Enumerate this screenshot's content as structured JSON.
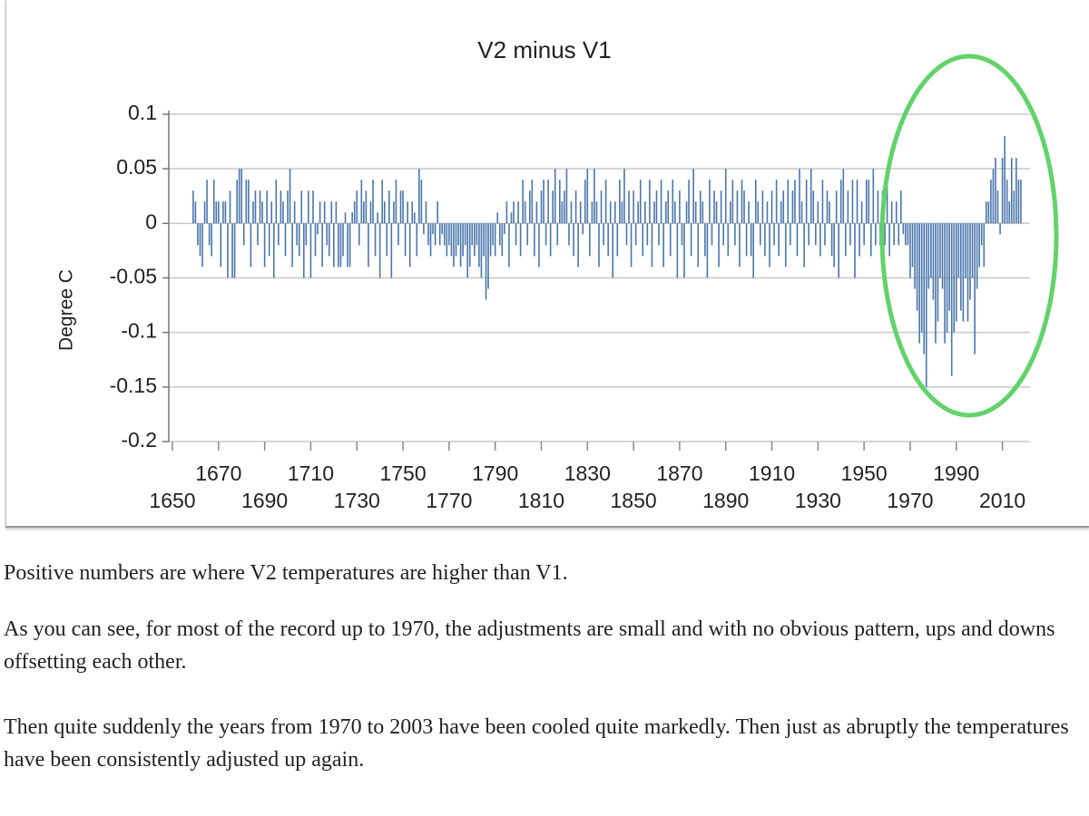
{
  "chart_data": {
    "type": "bar",
    "title": "V2 minus V1",
    "y_label": "Degree C",
    "x": [
      1659,
      1660,
      1661,
      1662,
      1663,
      1664,
      1665,
      1666,
      1667,
      1668,
      1669,
      1670,
      1671,
      1672,
      1673,
      1674,
      1675,
      1676,
      1677,
      1678,
      1679,
      1680,
      1681,
      1682,
      1683,
      1684,
      1685,
      1686,
      1687,
      1688,
      1689,
      1690,
      1691,
      1692,
      1693,
      1694,
      1695,
      1696,
      1697,
      1698,
      1699,
      1700,
      1701,
      1702,
      1703,
      1704,
      1705,
      1706,
      1707,
      1708,
      1709,
      1710,
      1711,
      1712,
      1713,
      1714,
      1715,
      1716,
      1717,
      1718,
      1719,
      1720,
      1721,
      1722,
      1723,
      1724,
      1725,
      1726,
      1727,
      1728,
      1729,
      1730,
      1731,
      1732,
      1733,
      1734,
      1735,
      1736,
      1737,
      1738,
      1739,
      1740,
      1741,
      1742,
      1743,
      1744,
      1745,
      1746,
      1747,
      1748,
      1749,
      1750,
      1751,
      1752,
      1753,
      1754,
      1755,
      1756,
      1757,
      1758,
      1759,
      1760,
      1761,
      1762,
      1763,
      1764,
      1765,
      1766,
      1767,
      1768,
      1769,
      1770,
      1771,
      1772,
      1773,
      1774,
      1775,
      1776,
      1777,
      1778,
      1779,
      1780,
      1781,
      1782,
      1783,
      1784,
      1785,
      1786,
      1787,
      1788,
      1789,
      1790,
      1791,
      1792,
      1793,
      1794,
      1795,
      1796,
      1797,
      1798,
      1799,
      1800,
      1801,
      1802,
      1803,
      1804,
      1805,
      1806,
      1807,
      1808,
      1809,
      1810,
      1811,
      1812,
      1813,
      1814,
      1815,
      1816,
      1817,
      1818,
      1819,
      1820,
      1821,
      1822,
      1823,
      1824,
      1825,
      1826,
      1827,
      1828,
      1829,
      1830,
      1831,
      1832,
      1833,
      1834,
      1835,
      1836,
      1837,
      1838,
      1839,
      1840,
      1841,
      1842,
      1843,
      1844,
      1845,
      1846,
      1847,
      1848,
      1849,
      1850,
      1851,
      1852,
      1853,
      1854,
      1855,
      1856,
      1857,
      1858,
      1859,
      1860,
      1861,
      1862,
      1863,
      1864,
      1865,
      1866,
      1867,
      1868,
      1869,
      1870,
      1871,
      1872,
      1873,
      1874,
      1875,
      1876,
      1877,
      1878,
      1879,
      1880,
      1881,
      1882,
      1883,
      1884,
      1885,
      1886,
      1887,
      1888,
      1889,
      1890,
      1891,
      1892,
      1893,
      1894,
      1895,
      1896,
      1897,
      1898,
      1899,
      1900,
      1901,
      1902,
      1903,
      1904,
      1905,
      1906,
      1907,
      1908,
      1909,
      1910,
      1911,
      1912,
      1913,
      1914,
      1915,
      1916,
      1917,
      1918,
      1919,
      1920,
      1921,
      1922,
      1923,
      1924,
      1925,
      1926,
      1927,
      1928,
      1929,
      1930,
      1931,
      1932,
      1933,
      1934,
      1935,
      1936,
      1937,
      1938,
      1939,
      1940,
      1941,
      1942,
      1943,
      1944,
      1945,
      1946,
      1947,
      1948,
      1949,
      1950,
      1951,
      1952,
      1953,
      1954,
      1955,
      1956,
      1957,
      1958,
      1959,
      1960,
      1961,
      1962,
      1963,
      1964,
      1965,
      1966,
      1967,
      1968,
      1969,
      1970,
      1971,
      1972,
      1973,
      1974,
      1975,
      1976,
      1977,
      1978,
      1979,
      1980,
      1981,
      1982,
      1983,
      1984,
      1985,
      1986,
      1987,
      1988,
      1989,
      1990,
      1991,
      1992,
      1993,
      1994,
      1995,
      1996,
      1997,
      1998,
      1999,
      2000,
      2001,
      2002,
      2003,
      2004,
      2005,
      2006,
      2007,
      2008,
      2009,
      2010,
      2011,
      2012,
      2013,
      2014,
      2015,
      2016,
      2017,
      2018
    ],
    "values": [
      0.03,
      0.02,
      -0.02,
      -0.03,
      -0.04,
      0.02,
      0.04,
      -0.02,
      -0.03,
      0.04,
      0.02,
      0.02,
      -0.04,
      0.02,
      0.02,
      -0.05,
      0.03,
      -0.05,
      -0.05,
      0.04,
      0.05,
      0.05,
      -0.02,
      0.04,
      0.04,
      -0.04,
      0.02,
      0.03,
      -0.02,
      0.03,
      0.02,
      -0.04,
      0.03,
      -0.03,
      0.02,
      -0.05,
      0.04,
      -0.02,
      0.03,
      0.02,
      -0.03,
      0.03,
      0.05,
      -0.04,
      0.02,
      -0.02,
      -0.03,
      0.03,
      -0.05,
      -0.02,
      0.03,
      -0.05,
      0.03,
      -0.03,
      -0.01,
      0.02,
      -0.04,
      0.02,
      -0.02,
      -0.03,
      0.02,
      -0.04,
      0.02,
      -0.04,
      -0.04,
      -0.03,
      0.01,
      -0.04,
      -0.04,
      0.01,
      0.02,
      0.03,
      -0.02,
      0.04,
      0.02,
      0.03,
      -0.04,
      0.02,
      0.04,
      -0.03,
      0.01,
      -0.05,
      0.04,
      0.02,
      -0.03,
      0.03,
      -0.05,
      0.02,
      0.04,
      -0.02,
      0.03,
      0.03,
      -0.03,
      0.02,
      -0.04,
      0.02,
      0.01,
      -0.03,
      0.05,
      0.04,
      -0.01,
      0.02,
      -0.02,
      -0.03,
      -0.01,
      -0.02,
      0.02,
      -0.02,
      -0.01,
      -0.02,
      -0.03,
      -0.02,
      -0.03,
      -0.04,
      -0.03,
      -0.02,
      -0.04,
      -0.03,
      -0.02,
      -0.05,
      -0.04,
      -0.02,
      -0.03,
      -0.02,
      -0.04,
      -0.05,
      -0.03,
      -0.07,
      -0.06,
      -0.03,
      -0.02,
      -0.03,
      0.01,
      -0.02,
      -0.03,
      -0.01,
      0.02,
      -0.04,
      0.01,
      0.02,
      -0.02,
      0.02,
      -0.03,
      0.04,
      0.02,
      -0.02,
      0.03,
      0.04,
      -0.03,
      0.02,
      -0.04,
      0.03,
      0.04,
      -0.02,
      0.04,
      -0.03,
      0.03,
      0.05,
      -0.02,
      0.04,
      0.02,
      0.03,
      0.05,
      -0.02,
      0.02,
      -0.03,
      0.03,
      -0.04,
      0.02,
      -0.01,
      0.04,
      0.05,
      -0.03,
      0.02,
      0.05,
      0.02,
      -0.04,
      0.03,
      -0.02,
      0.04,
      -0.03,
      0.02,
      -0.05,
      0.02,
      -0.03,
      0.04,
      0.02,
      0.05,
      -0.02,
      0.03,
      -0.04,
      0.03,
      -0.02,
      0.02,
      0.04,
      -0.03,
      0.02,
      -0.02,
      0.04,
      -0.04,
      0.02,
      0.03,
      -0.02,
      0.04,
      -0.04,
      0.02,
      0.03,
      -0.03,
      0.04,
      0.02,
      -0.05,
      0.03,
      -0.02,
      -0.05,
      0.02,
      0.04,
      -0.03,
      0.05,
      0.02,
      -0.04,
      0.03,
      0.02,
      -0.03,
      -0.05,
      0.04,
      -0.02,
      0.03,
      0.02,
      -0.04,
      0.03,
      -0.02,
      0.05,
      -0.03,
      0.02,
      0.04,
      -0.02,
      0.03,
      -0.04,
      0.04,
      0.03,
      -0.03,
      0.02,
      -0.03,
      -0.05,
      0.04,
      0.02,
      -0.02,
      0.03,
      -0.03,
      0.02,
      -0.04,
      0.03,
      -0.02,
      0.04,
      -0.03,
      0.02,
      0.03,
      -0.04,
      0.04,
      -0.02,
      0.03,
      0.04,
      -0.03,
      0.05,
      0.02,
      -0.04,
      0.04,
      -0.02,
      0.05,
      0.03,
      -0.02,
      0.02,
      -0.03,
      0.04,
      -0.02,
      0.03,
      0.02,
      -0.03,
      -0.04,
      0.03,
      -0.05,
      0.04,
      0.05,
      -0.03,
      0.03,
      -0.02,
      0.04,
      -0.05,
      0.04,
      -0.03,
      0.02,
      -0.02,
      0.04,
      0.04,
      -0.03,
      0.05,
      -0.02,
      0.03,
      -0.02,
      0.03,
      -0.02,
      0.04,
      -0.03,
      0.02,
      -0.02,
      0.02,
      -0.02,
      0.03,
      -0.01,
      -0.02,
      -0.02,
      -0.05,
      -0.04,
      -0.06,
      -0.08,
      -0.11,
      -0.1,
      -0.12,
      -0.15,
      -0.06,
      -0.05,
      -0.07,
      -0.11,
      -0.09,
      -0.05,
      -0.06,
      -0.11,
      -0.1,
      -0.08,
      -0.14,
      -0.1,
      -0.09,
      -0.05,
      -0.08,
      -0.09,
      -0.05,
      -0.09,
      -0.07,
      -0.05,
      -0.12,
      -0.06,
      -0.04,
      -0.02,
      -0.04,
      0.02,
      0.02,
      0.04,
      0.05,
      0.06,
      0.03,
      -0.01,
      0.06,
      0.08,
      0.04,
      0.02,
      0.06,
      0.03,
      0.06,
      0.04,
      0.04
    ],
    "color": "#4a76ab",
    "xlim": [
      1650,
      2020
    ],
    "xticks": [
      1650,
      1670,
      1690,
      1710,
      1730,
      1750,
      1770,
      1790,
      1810,
      1830,
      1850,
      1870,
      1890,
      1910,
      1930,
      1950,
      1970,
      1990,
      2010
    ],
    "ylim": [
      -0.2,
      0.1
    ],
    "yticks": [
      -0.2,
      -0.15,
      -0.1,
      -0.05,
      0,
      0.05,
      0.1
    ],
    "grid": true
  },
  "paragraphs": [
    "Positive numbers are where V2 temperatures are higher than V1.",
    "As you can see, for most of the record up to 1970, the adjustments are small and with no obvious pattern, ups and downs offsetting each other.",
    "Then quite suddenly the years from 1970 to 2003 have been cooled quite markedly. Then just as abruptly the temperatures have been consistently adjusted up again."
  ]
}
